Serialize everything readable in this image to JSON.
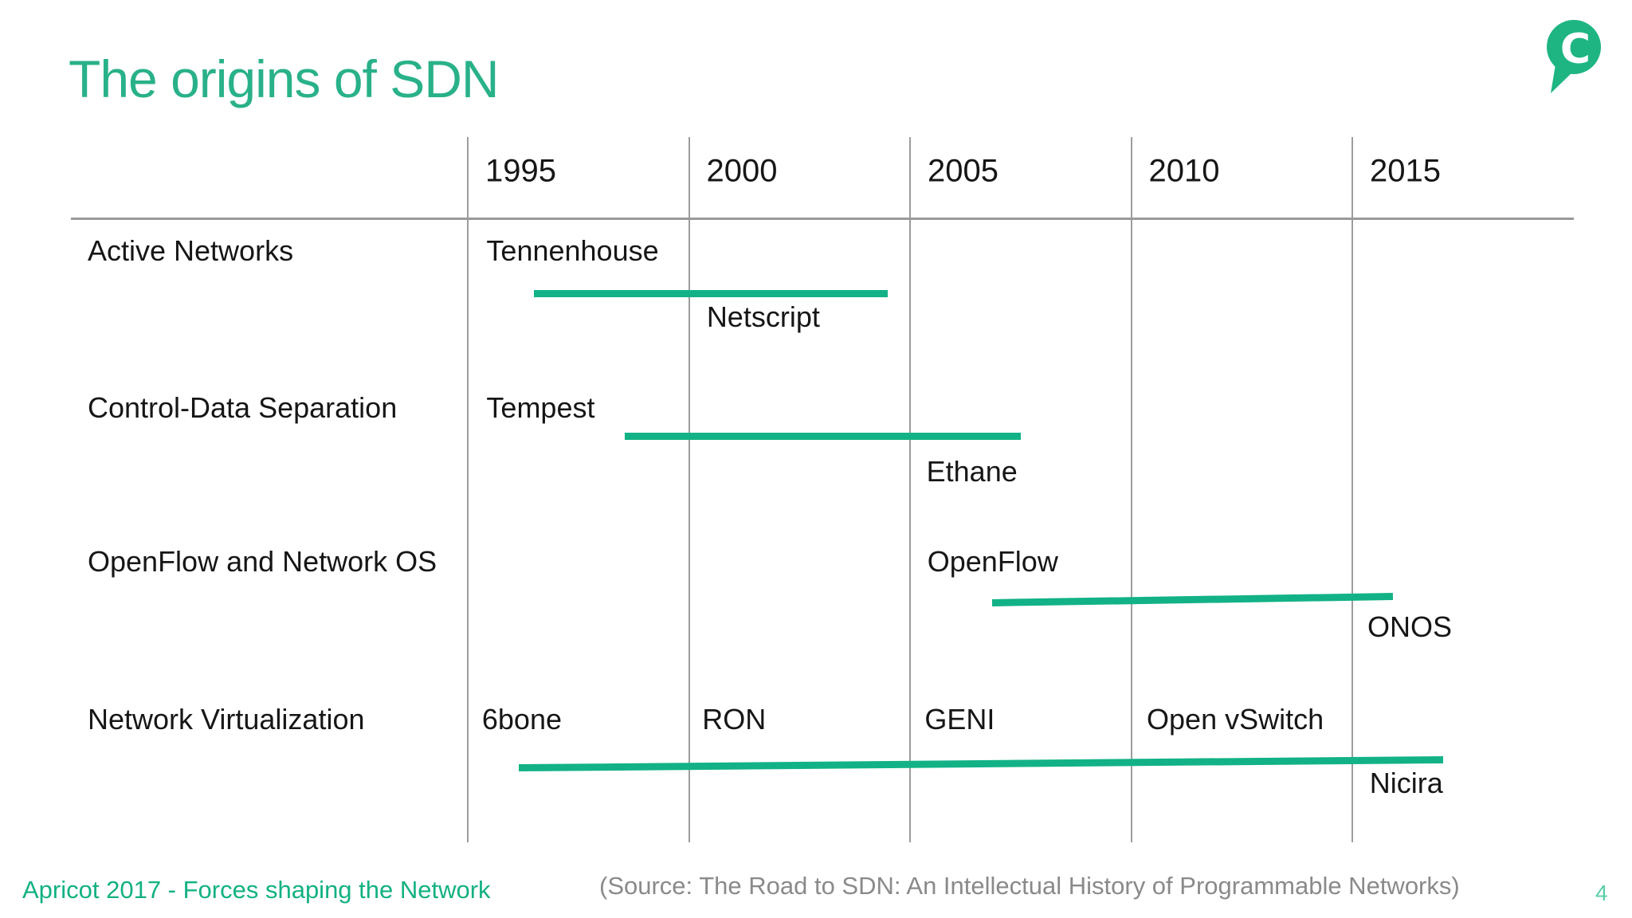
{
  "slide": {
    "title": "The origins of SDN",
    "logo_letter": "C",
    "footer_left": "Apricot 2017 - Forces shaping the Network",
    "footer_source": "(Source: The Road to SDN: An Intellectual History of Programmable Networks)",
    "page_number": "4"
  },
  "colors": {
    "accent_green": "#12b286",
    "title_green": "#29b189",
    "logo_green": "#1eb582",
    "footer_green": "#13b182",
    "page_number_green": "#5bcfa8",
    "grid_gray": "#9d9d9d",
    "source_gray": "#8a8a8a",
    "text_black": "#161616"
  },
  "chart_data": {
    "type": "timeline",
    "title": "The origins of SDN",
    "x_axis": {
      "unit": "year",
      "ticks": [
        "1995",
        "2000",
        "2005",
        "2010",
        "2015"
      ],
      "range_start": 1986,
      "range_end": 2020,
      "grid": true
    },
    "legend": "none",
    "bar_color": "#12b286",
    "categories": [
      {
        "label": "Active Networks",
        "bar": {
          "start": 1996.5,
          "end": 2004.5
        },
        "milestones": [
          {
            "label": "Tennenhouse",
            "year": 1995.35,
            "placement": "top"
          },
          {
            "label": "Netscript",
            "year": 2000.33,
            "placement": "bottom"
          }
        ]
      },
      {
        "label": "Control-Data Separation",
        "bar": {
          "start": 1998.55,
          "end": 2007.5
        },
        "milestones": [
          {
            "label": "Tempest",
            "year": 1995.35,
            "placement": "top"
          },
          {
            "label": "Ethane",
            "year": 2005.3,
            "placement": "bottom"
          }
        ]
      },
      {
        "label": "OpenFlow and Network OS",
        "bar": {
          "start": 2006.85,
          "end": 2015.92
        },
        "milestones": [
          {
            "label": "OpenFlow",
            "year": 2005.32,
            "placement": "top"
          },
          {
            "label": "ONOS",
            "year": 2015.27,
            "placement": "bottom"
          }
        ]
      },
      {
        "label": "Network Virtualization",
        "bar": {
          "start": 1996.15,
          "end": 2017.05
        },
        "milestones": [
          {
            "label": "6bone",
            "year": 1995.25,
            "placement": "top"
          },
          {
            "label": "RON",
            "year": 2000.23,
            "placement": "top"
          },
          {
            "label": "GENI",
            "year": 2005.26,
            "placement": "top"
          },
          {
            "label": "Open vSwitch",
            "year": 2010.28,
            "placement": "top"
          },
          {
            "label": "Nicira",
            "year": 2015.32,
            "placement": "bottom"
          }
        ]
      }
    ]
  }
}
